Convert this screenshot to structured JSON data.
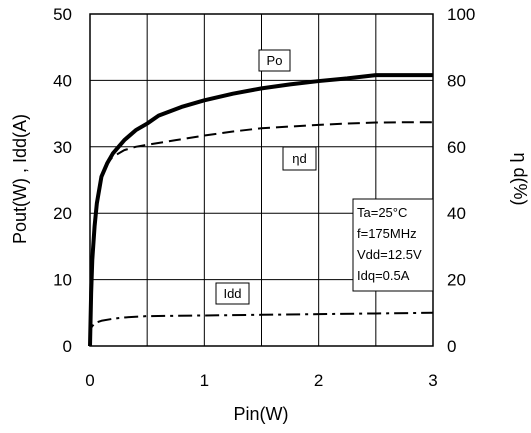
{
  "chart_data": {
    "type": "line",
    "xlabel": "Pin(W)",
    "ylabel": "Pout(W) , Idd(A)",
    "y2label": "η d(%)",
    "xlim": [
      0,
      3
    ],
    "ylim": [
      0,
      50
    ],
    "y2lim": [
      0,
      100
    ],
    "xticks": [
      0,
      1,
      2,
      3
    ],
    "yticks": [
      0,
      10,
      20,
      30,
      40,
      50
    ],
    "y2ticks": [
      0,
      20,
      40,
      60,
      80,
      100
    ],
    "grid": true,
    "series": [
      {
        "name": "Po",
        "axis": "left",
        "style": "solid-thick",
        "x": [
          0,
          0.005,
          0.01,
          0.02,
          0.04,
          0.06,
          0.1,
          0.15,
          0.2,
          0.3,
          0.4,
          0.5,
          0.6,
          0.8,
          1.0,
          1.25,
          1.5,
          1.75,
          2.0,
          2.25,
          2.5,
          2.75,
          3.0
        ],
        "values": [
          0,
          4,
          8,
          13,
          18,
          21.5,
          25.5,
          27.5,
          29,
          31,
          32.5,
          33.5,
          34.7,
          36,
          37,
          38,
          38.8,
          39.4,
          39.9,
          40.3,
          40.8,
          40.8,
          40.8
        ]
      },
      {
        "name": "ηd",
        "axis": "right",
        "style": "dashed",
        "x": [
          0,
          0.005,
          0.01,
          0.02,
          0.04,
          0.06,
          0.1,
          0.15,
          0.2,
          0.3,
          0.4,
          0.5,
          0.75,
          1.0,
          1.25,
          1.5,
          1.75,
          2.0,
          2.25,
          2.5,
          2.75,
          3.0
        ],
        "values": [
          0,
          9,
          18,
          28,
          38,
          44,
          51,
          55,
          57,
          59,
          60,
          60.6,
          62,
          63.4,
          64.6,
          65.6,
          66.1,
          66.6,
          67,
          67.3,
          67.4,
          67.4
        ]
      },
      {
        "name": "Idd",
        "axis": "left",
        "style": "dashdot",
        "x": [
          0,
          0.003,
          0.01,
          0.02,
          0.05,
          0.1,
          0.2,
          0.3,
          0.5,
          0.75,
          1.0,
          1.5,
          2.0,
          2.5,
          3.0
        ],
        "values": [
          0,
          1.5,
          2.5,
          3,
          3.5,
          3.8,
          4.1,
          4.3,
          4.5,
          4.55,
          4.6,
          4.7,
          4.8,
          4.9,
          5.0
        ]
      }
    ],
    "labels": {
      "po": "Po",
      "eta": "ηd",
      "idd": "Idd"
    },
    "conditions": [
      "Ta=25°C",
      "f=175MHz",
      "Vdd=12.5V",
      "Idq=0.5A"
    ]
  }
}
